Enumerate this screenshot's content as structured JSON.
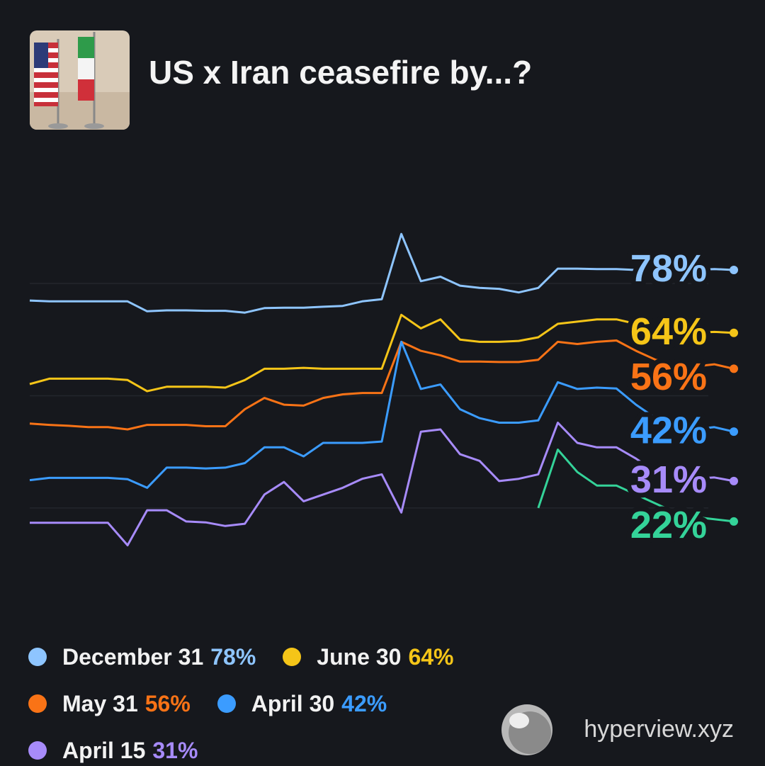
{
  "chart_data": {
    "type": "line",
    "title": "US x Iran ceasefire by...?",
    "ylim": [
      10,
      100
    ],
    "yticks": [
      25,
      50,
      75
    ],
    "grid": true,
    "series": [
      {
        "name": "December 31",
        "color": "#8ec5ff",
        "value_label": "78%",
        "values": [
          71.2,
          71,
          71,
          71,
          71,
          71,
          68.8,
          69,
          69,
          68.9,
          68.9,
          68.5,
          69.5,
          69.6,
          69.6,
          69.8,
          70,
          71,
          71.5,
          86,
          75.5,
          76.5,
          74.5,
          74,
          73.8,
          73,
          74,
          78.3,
          78.3,
          78.2,
          78.2,
          78,
          78,
          78,
          78,
          78.2,
          78
        ]
      },
      {
        "name": "June 30",
        "color": "#f5c518",
        "value_label": "64%",
        "values": [
          52.6,
          53.8,
          53.8,
          53.8,
          53.8,
          53.5,
          51,
          52,
          52,
          52,
          51.8,
          53.5,
          56,
          56,
          56.2,
          56,
          56,
          56,
          56,
          68,
          65,
          67,
          62.5,
          62,
          62,
          62.2,
          63,
          66,
          66.5,
          67,
          67,
          66,
          65,
          64.5,
          64,
          64.2,
          64
        ]
      },
      {
        "name": "May 31",
        "color": "#f97316",
        "value_label": "56%",
        "values": [
          43.8,
          43.5,
          43.3,
          43,
          43,
          42.5,
          43.5,
          43.5,
          43.5,
          43.2,
          43.2,
          47,
          49.5,
          48,
          47.8,
          49.5,
          50.3,
          50.6,
          50.6,
          62,
          60,
          59,
          57.6,
          57.6,
          57.5,
          57.5,
          58,
          62,
          61.5,
          62,
          62.3,
          60,
          58,
          57,
          56.5,
          57,
          56
        ]
      },
      {
        "name": "April 30",
        "color": "#3b9cff",
        "value_label": "42%",
        "values": [
          31.2,
          31.7,
          31.7,
          31.7,
          31.7,
          31.4,
          29.5,
          34,
          34,
          33.8,
          34,
          35,
          38.5,
          38.5,
          36.5,
          39.5,
          39.5,
          39.5,
          39.8,
          62,
          51.5,
          52.5,
          47,
          45,
          44,
          44,
          44.5,
          53,
          51.5,
          51.8,
          51.6,
          48,
          45,
          43,
          42.5,
          43,
          42
        ]
      },
      {
        "name": "April 15",
        "color": "#a78bfa",
        "value_label": "31%",
        "values": [
          21.7,
          21.7,
          21.7,
          21.7,
          21.7,
          16.7,
          24.5,
          24.5,
          22,
          21.8,
          21,
          21.5,
          28,
          30.8,
          26.5,
          28,
          29.5,
          31.5,
          32.5,
          24,
          42,
          42.5,
          37,
          35.5,
          31,
          31.5,
          32.5,
          44,
          39.5,
          38.5,
          38.5,
          36,
          33,
          32,
          31.5,
          31.8,
          31
        ]
      },
      {
        "color": "#34d399",
        "value_label": "22%",
        "values": [
          null,
          null,
          null,
          null,
          null,
          null,
          null,
          null,
          null,
          null,
          null,
          null,
          null,
          null,
          null,
          null,
          null,
          null,
          null,
          null,
          null,
          null,
          null,
          null,
          null,
          null,
          25,
          38,
          33,
          30,
          30,
          28,
          26,
          24,
          23,
          22.5,
          22
        ]
      }
    ]
  },
  "watermark": "hyperview.xyz"
}
